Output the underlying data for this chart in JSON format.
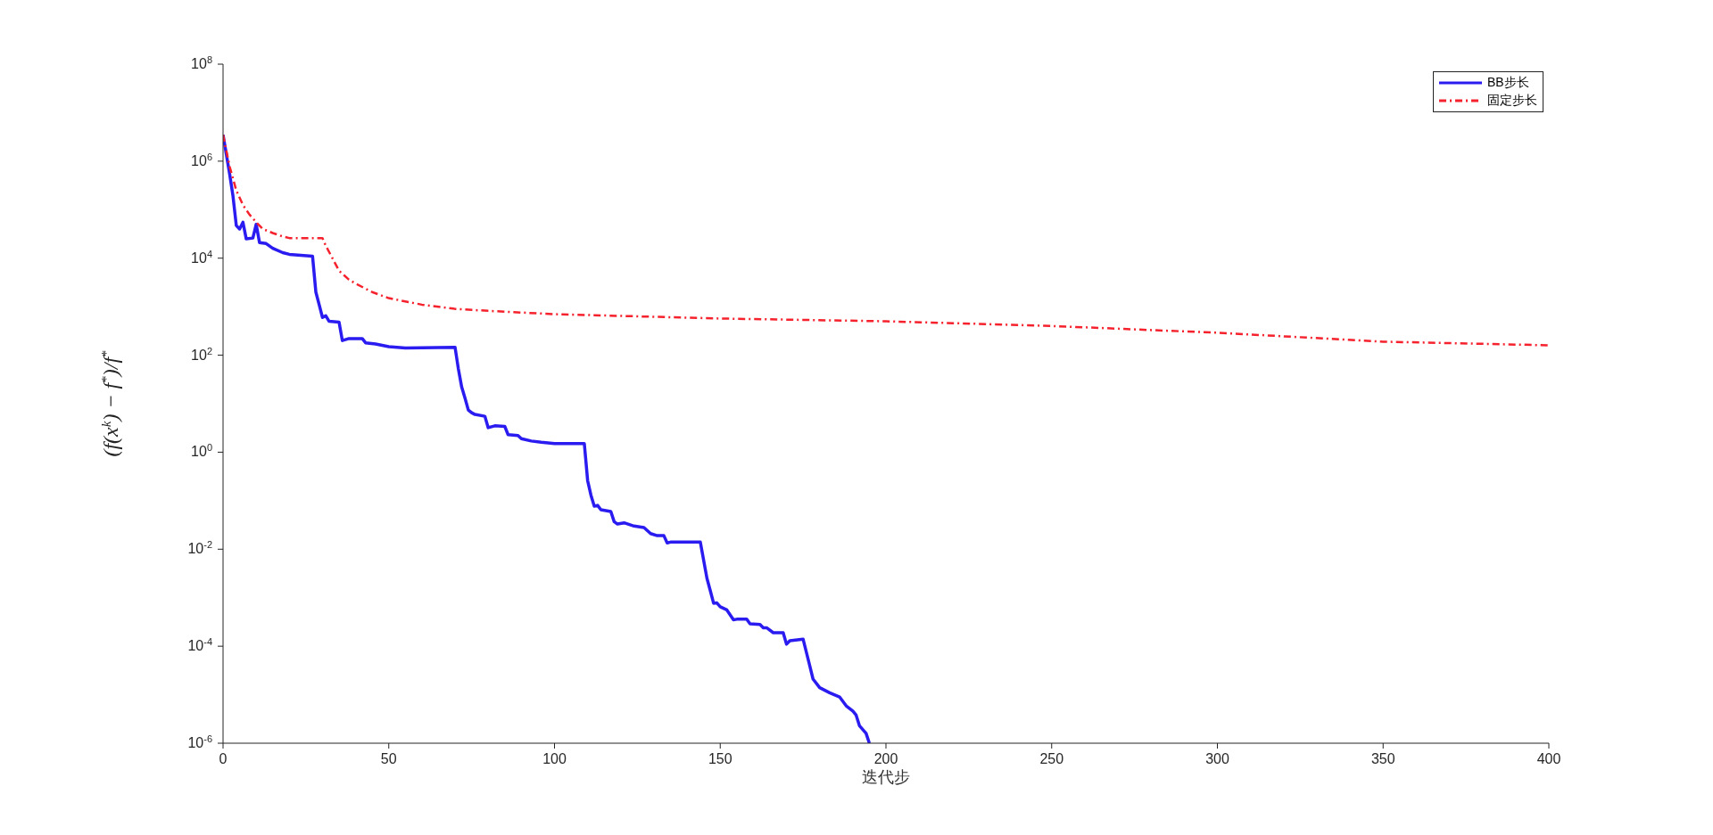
{
  "chart_data": {
    "type": "line",
    "xlabel": "迭代步",
    "ylabel": "(f(x$^{k}$) − f$^{*}$)/f$^{*}$",
    "log": "y",
    "xlim": [
      0,
      400
    ],
    "xticks": [
      0,
      50,
      100,
      150,
      200,
      250,
      300,
      350,
      400
    ],
    "ylim": [
      1e-06,
      100000000.0
    ],
    "yticks": [
      {
        "value": 1e-06,
        "label": "10$^{-6}$"
      },
      {
        "value": 0.0001,
        "label": "10$^{-4}$"
      },
      {
        "value": 0.01,
        "label": "10$^{-2}$"
      },
      {
        "value": 1,
        "label": "10$^{0}$"
      },
      {
        "value": 100,
        "label": "10$^{2}$"
      },
      {
        "value": 10000,
        "label": "10$^{4}$"
      },
      {
        "value": 1000000,
        "label": "10$^{6}$"
      },
      {
        "value": 100000000,
        "label": "10$^{8}$"
      }
    ],
    "grid": false,
    "legend": "top right",
    "marker": "none",
    "series": [
      {
        "name": "BB步长",
        "color": "#2a1cf0",
        "line_style": "solid",
        "x": [
          0,
          2,
          3,
          4,
          5,
          6,
          7,
          9,
          10,
          11,
          13,
          15,
          18,
          20,
          27,
          28,
          29,
          30,
          31,
          32,
          35,
          36,
          38,
          42,
          43,
          46,
          50,
          55,
          70,
          71,
          72,
          73,
          74,
          75,
          76,
          79,
          80,
          82,
          85,
          86,
          89,
          90,
          93,
          96,
          100,
          109,
          110,
          111,
          112,
          113,
          114,
          117,
          118,
          119,
          121,
          124,
          127,
          129,
          131,
          133,
          134,
          135,
          144,
          146,
          147,
          148,
          149,
          150,
          152,
          154,
          155,
          158,
          159,
          162,
          163,
          164,
          166,
          169,
          170,
          171,
          175,
          177,
          178,
          180,
          183,
          186,
          188,
          190,
          191,
          192,
          194,
          195
        ],
        "values": [
          3500000,
          540000,
          190000,
          47000,
          40000,
          55000,
          25000,
          26000,
          50000,
          21000,
          20000,
          16000,
          13000,
          12000,
          11000,
          2000,
          1100,
          600,
          650,
          500,
          480,
          200,
          220,
          220,
          180,
          170,
          150,
          140,
          145,
          52,
          22,
          13,
          7.4,
          6.5,
          6,
          5.5,
          3.2,
          3.5,
          3.4,
          2.3,
          2.2,
          1.9,
          1.7,
          1.6,
          1.5,
          1.5,
          0.26,
          0.13,
          0.077,
          0.08,
          0.065,
          0.06,
          0.037,
          0.033,
          0.035,
          0.03,
          0.028,
          0.021,
          0.019,
          0.019,
          0.0135,
          0.014,
          0.014,
          0.0025,
          0.0014,
          0.00077,
          0.00078,
          0.00065,
          0.00056,
          0.00035,
          0.00036,
          0.00036,
          0.00029,
          0.00028,
          0.00024,
          0.00024,
          0.00019,
          0.00019,
          0.00011,
          0.00013,
          0.00014,
          4e-05,
          2.1e-05,
          1.4e-05,
          1.1e-05,
          9e-06,
          5.9e-06,
          4.6e-06,
          3.8e-06,
          2.3e-06,
          1.6e-06,
          1e-06
        ]
      },
      {
        "name": "固定步长",
        "color": "#f5222d",
        "line_style": "dashdot",
        "x": [
          0,
          2,
          4,
          6,
          8,
          10,
          12,
          15,
          18,
          20,
          25,
          30,
          31,
          33,
          35,
          38,
          40,
          45,
          50,
          60,
          70,
          80,
          100,
          150,
          200,
          250,
          300,
          350,
          400
        ],
        "values": [
          3500000,
          770000,
          250000,
          125000,
          79000,
          55000,
          40000,
          33000,
          28000,
          26000,
          26000,
          26000,
          18000,
          10000,
          5500,
          3600,
          3000,
          2000,
          1500,
          1100,
          900,
          820,
          700,
          570,
          500,
          400,
          290,
          190,
          160
        ]
      }
    ]
  }
}
